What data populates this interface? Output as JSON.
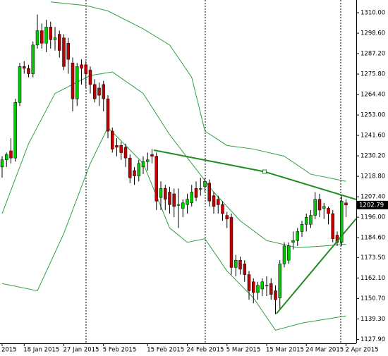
{
  "chart_data": {
    "type": "candlestick",
    "categories": [
      "2015",
      null,
      null,
      null,
      null,
      "18 Jan 2015",
      null,
      null,
      null,
      null,
      null,
      null,
      null,
      null,
      "27 Jan 2015",
      null,
      null,
      null,
      null,
      null,
      null,
      null,
      null,
      "5 Feb 2015",
      null,
      null,
      null,
      null,
      null,
      null,
      null,
      null,
      null,
      "15 Feb 2015",
      null,
      null,
      null,
      null,
      null,
      null,
      null,
      null,
      "24 Feb 2015",
      null,
      null,
      null,
      null,
      null,
      null,
      null,
      null,
      "5 Mar 2015",
      null,
      null,
      null,
      null,
      null,
      null,
      null,
      null,
      "15 Mar 2015",
      null,
      null,
      null,
      null,
      null,
      null,
      null,
      null,
      "24 Mar 2015",
      null,
      null,
      null,
      null,
      null,
      null,
      null,
      null,
      "2 Apr 2015"
    ],
    "open": [
      1224,
      1228,
      1233,
      1229,
      1260,
      1280,
      1279,
      1276,
      1292,
      1300,
      1293,
      1302,
      1295,
      1298,
      1296,
      1293,
      1282,
      1262,
      1281,
      1281,
      1278,
      1270,
      1268,
      1270,
      1262,
      1244,
      1236,
      1236,
      1235,
      1229,
      1222,
      1219,
      1224,
      1227,
      1231,
      1230,
      1207,
      1212,
      1210,
      1209,
      1203,
      1201,
      1203,
      1204,
      1212,
      1212,
      1213,
      1215,
      1208,
      1206,
      1203,
      1197,
      1196,
      1168,
      1172,
      1170,
      1164,
      1160,
      1154,
      1156,
      1158,
      1159,
      1155,
      1151,
      1170,
      1172,
      1182,
      1183,
      1188,
      1192,
      1192,
      1197,
      1206,
      1201,
      1201,
      1198,
      1186,
      1182,
      1204
    ],
    "high": [
      1230,
      1232,
      1240,
      1262,
      1282,
      1283,
      1281,
      1294,
      1309,
      1304,
      1306,
      1305,
      1302,
      1300,
      1298,
      1296,
      1285,
      1282,
      1284,
      1283,
      1280,
      1273,
      1271,
      1272,
      1264,
      1246,
      1240,
      1238,
      1237,
      1231,
      1224,
      1228,
      1230,
      1232,
      1234,
      1232,
      1216,
      1214,
      1213,
      1212,
      1212,
      1206,
      1209,
      1214,
      1216,
      1218,
      1218,
      1217,
      1210,
      1208,
      1205,
      1199,
      1198,
      1175,
      1174,
      1172,
      1166,
      1162,
      1160,
      1162,
      1163,
      1162,
      1158,
      1172,
      1182,
      1182,
      1188,
      1190,
      1194,
      1198,
      1200,
      1210,
      1209,
      1204,
      1202,
      1200,
      1188,
      1208,
      1206
    ],
    "low": [
      1218,
      1224,
      1226,
      1227,
      1258,
      1276,
      1274,
      1274,
      1290,
      1290,
      1288,
      1290,
      1289,
      1285,
      1278,
      1276,
      1255,
      1258,
      1270,
      1268,
      1265,
      1260,
      1258,
      1255,
      1240,
      1232,
      1230,
      1228,
      1224,
      1215,
      1214,
      1216,
      1220,
      1222,
      1226,
      1200,
      1200,
      1200,
      1198,
      1196,
      1190,
      1196,
      1198,
      1202,
      1205,
      1208,
      1210,
      1202,
      1198,
      1198,
      1194,
      1190,
      1164,
      1163,
      1164,
      1160,
      1150,
      1148,
      1150,
      1152,
      1152,
      1150,
      1142,
      1145,
      1168,
      1170,
      1178,
      1180,
      1185,
      1188,
      1190,
      1195,
      1196,
      1195,
      1192,
      1182,
      1180,
      1180,
      1196
    ],
    "close": [
      1228,
      1231,
      1229,
      1260,
      1280,
      1279,
      1276,
      1292,
      1300,
      1293,
      1302,
      1295,
      1296,
      1289,
      1280,
      1284,
      1262,
      1280,
      1279,
      1276,
      1270,
      1262,
      1264,
      1262,
      1244,
      1234,
      1235,
      1232,
      1229,
      1218,
      1219,
      1226,
      1227,
      1228,
      1230,
      1205,
      1212,
      1206,
      1203,
      1202,
      1203,
      1204,
      1206,
      1210,
      1207,
      1212,
      1216,
      1205,
      1202,
      1203,
      1198,
      1195,
      1168,
      1172,
      1167,
      1164,
      1155,
      1154,
      1158,
      1160,
      1158,
      1153,
      1150,
      1170,
      1180,
      1180,
      1183,
      1188,
      1192,
      1196,
      1197,
      1206,
      1200,
      1202,
      1198,
      1184,
      1182,
      1205,
      1202.79
    ],
    "up_color": "#00c800",
    "down_color": "#c00000",
    "bands": [
      {
        "color": "#2ea043",
        "x": [
          11,
          19,
          24,
          32,
          38,
          43,
          46,
          51,
          57,
          64,
          70,
          78
        ],
        "values": [
          1316,
          1314,
          1311,
          1301,
          1292,
          1274,
          1244,
          1236,
          1234,
          1230,
          1220,
          1216
        ]
      },
      {
        "color": "#2ea043",
        "x": [
          0,
          6,
          12,
          20,
          25,
          32,
          38,
          43,
          48,
          54,
          60,
          67,
          73,
          78
        ],
        "values": [
          1198,
          1237,
          1265,
          1275,
          1277,
          1265,
          1242,
          1226,
          1210,
          1194,
          1183,
          1179,
          1180,
          1181
        ]
      },
      {
        "color": "#2ea043",
        "x": [
          0,
          8,
          14,
          20,
          24,
          32,
          38,
          42,
          46,
          51,
          57,
          62,
          68,
          78
        ],
        "values": [
          1159,
          1155,
          1187,
          1226,
          1246,
          1226,
          1190,
          1182,
          1184,
          1166,
          1151,
          1133,
          1137,
          1141
        ]
      }
    ],
    "trendlines": [
      {
        "color": "#1e8c1e",
        "x": [
          34.4,
          59.5,
          80.3
        ],
        "values": [
          1233.4,
          1221.4,
          1205.9
        ]
      },
      {
        "color": "#1e8c1e",
        "x": [
          62.2,
          80.3
        ],
        "values": [
          1142.2,
          1195.2
        ]
      }
    ],
    "ylim": [
      1125.7,
      1317.1
    ],
    "yticks": [
      {
        "value": 1310,
        "label": "1310.00"
      },
      {
        "value": 1298.6,
        "label": "1298.60"
      },
      {
        "value": 1287.2,
        "label": "1287.20"
      },
      {
        "value": 1275.8,
        "label": "1275.80"
      },
      {
        "value": 1264.4,
        "label": "1264.40"
      },
      {
        "value": 1253,
        "label": "1253.00"
      },
      {
        "value": 1241.6,
        "label": "1241.60"
      },
      {
        "value": 1230.2,
        "label": "1230.20"
      },
      {
        "value": 1218.8,
        "label": "1218.80"
      },
      {
        "value": 1207.4,
        "label": "1207.40"
      },
      {
        "value": 1196,
        "label": "1196.00"
      },
      {
        "value": 1184.6,
        "label": "1184.60"
      },
      {
        "value": 1173.5,
        "label": "1173.50"
      },
      {
        "value": 1162.1,
        "label": "1162.10"
      },
      {
        "value": 1150.7,
        "label": "1150.70"
      },
      {
        "value": 1139.3,
        "label": "1139.30"
      },
      {
        "value": 1127.9,
        "label": "1127.90"
      }
    ]
  }
}
